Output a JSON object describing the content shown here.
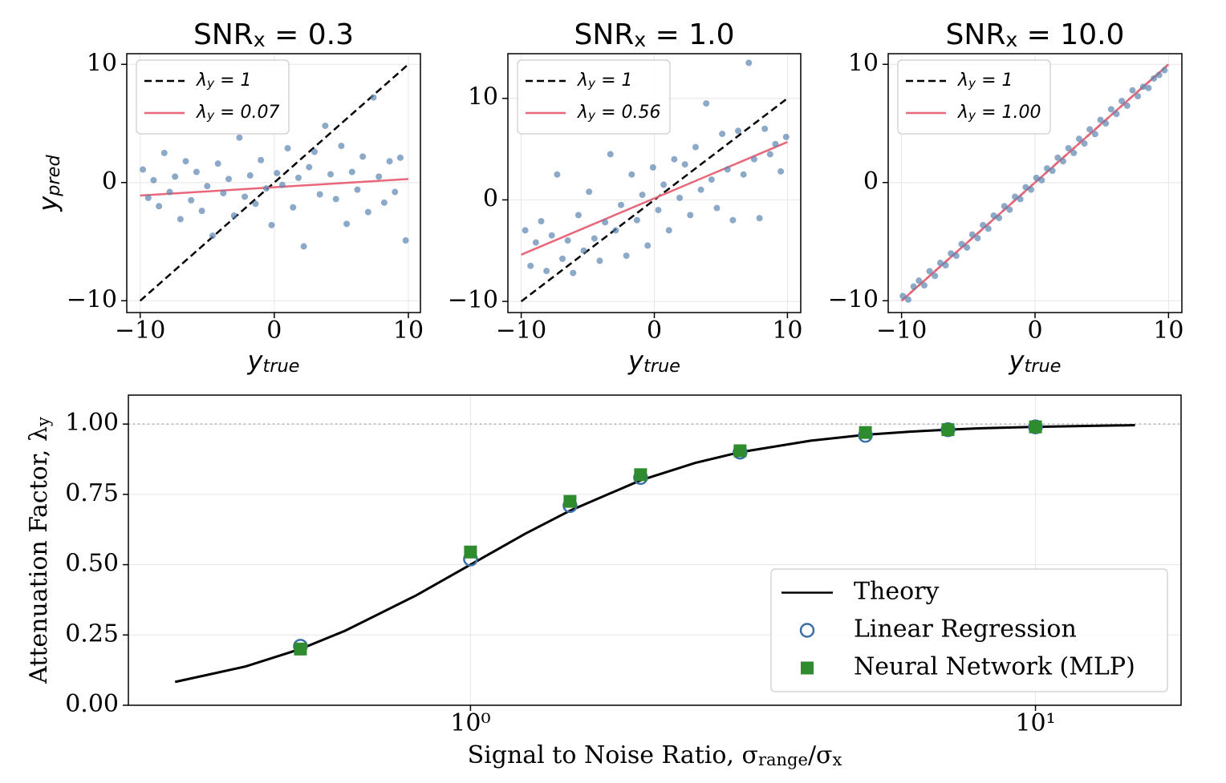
{
  "chart_data": [
    {
      "type": "scatter",
      "title": [
        {
          "t": "SNR"
        },
        {
          "sub": "x"
        },
        {
          "t": " = 0.3"
        }
      ],
      "xlabel": [
        {
          "t": "y"
        },
        {
          "sub": "true"
        }
      ],
      "ylabel": [
        {
          "t": "y"
        },
        {
          "sub": "pred"
        }
      ],
      "xlim": [
        -11,
        10.9
      ],
      "ylim": [
        -11,
        10.9
      ],
      "xticks": [
        {
          "value": -10,
          "label": "−10"
        },
        0,
        10
      ],
      "yticks": [
        {
          "value": -10,
          "label": "−10"
        },
        0,
        10
      ],
      "grid": true,
      "legend": "upper left",
      "series": [
        {
          "name": [
            {
              "t": "λ"
            },
            {
              "sub": "y"
            },
            {
              "t": " = 1"
            }
          ],
          "color": "#000000",
          "style": "dashed",
          "x": [
            -10,
            10
          ],
          "values": [
            -10,
            10
          ]
        },
        {
          "name": [
            {
              "t": "λ"
            },
            {
              "sub": "y"
            },
            {
              "t": " = 0.07"
            }
          ],
          "color": "#e8677a",
          "style": "line",
          "x": [
            -10,
            10
          ],
          "values": [
            -1.1,
            0.3
          ]
        },
        {
          "color": "#5b84b1",
          "style": "points",
          "x": [
            -9.8,
            -9.4,
            -9.0,
            -8.6,
            -8.2,
            -7.8,
            -7.4,
            -7.0,
            -6.6,
            -6.2,
            -5.8,
            -5.4,
            -5.0,
            -4.6,
            -4.2,
            -3.8,
            -3.4,
            -3.0,
            -2.6,
            -2.2,
            -1.8,
            -1.4,
            -1.0,
            -0.6,
            -0.2,
            0.2,
            0.6,
            1.0,
            1.4,
            1.8,
            2.2,
            2.6,
            3.0,
            3.4,
            3.8,
            4.2,
            4.6,
            5.0,
            5.4,
            5.8,
            6.2,
            6.6,
            7.0,
            7.4,
            7.8,
            8.2,
            8.6,
            9.0,
            9.4,
            9.8
          ],
          "values": [
            1.1,
            -1.3,
            0.2,
            -2.0,
            2.5,
            -0.8,
            0.5,
            -3.1,
            1.8,
            -1.5,
            0.9,
            -2.4,
            -0.3,
            -4.5,
            1.6,
            -0.9,
            0.3,
            -2.8,
            3.8,
            -1.2,
            0.6,
            -1.8,
            1.9,
            -0.5,
            -3.6,
            0.8,
            -0.2,
            2.9,
            -2.1,
            0.4,
            -5.4,
            1.3,
            2.6,
            -1.0,
            4.8,
            0.7,
            -1.4,
            3.1,
            -3.5,
            0.9,
            -0.6,
            2.2,
            -2.5,
            7.2,
            0.5,
            -1.7,
            1.8,
            -0.8,
            2.1,
            -4.9
          ]
        }
      ]
    },
    {
      "type": "scatter",
      "title": [
        {
          "t": "SNR"
        },
        {
          "sub": "x"
        },
        {
          "t": " = 1.0"
        }
      ],
      "xlabel": [
        {
          "t": "y"
        },
        {
          "sub": "true"
        }
      ],
      "xlim": [
        -11,
        11
      ],
      "ylim": [
        -11.1,
        14.4
      ],
      "xticks": [
        {
          "value": -10,
          "label": "−10"
        },
        0,
        10
      ],
      "yticks": [
        {
          "value": -10,
          "label": "−10"
        },
        0,
        10
      ],
      "grid": true,
      "legend": "upper left",
      "series": [
        {
          "name": [
            {
              "t": "λ"
            },
            {
              "sub": "y"
            },
            {
              "t": " = 1"
            }
          ],
          "color": "#000000",
          "style": "dashed",
          "x": [
            -10,
            10
          ],
          "values": [
            -10,
            10
          ]
        },
        {
          "name": [
            {
              "t": "λ"
            },
            {
              "sub": "y"
            },
            {
              "t": " = 0.56"
            }
          ],
          "color": "#e8677a",
          "style": "line",
          "x": [
            -10,
            10
          ],
          "values": [
            -5.4,
            5.7
          ]
        },
        {
          "color": "#5b84b1",
          "style": "points",
          "x": [
            -9.7,
            -9.3,
            -8.9,
            -8.5,
            -8.1,
            -7.7,
            -7.3,
            -6.9,
            -6.5,
            -6.1,
            -5.7,
            -5.3,
            -4.9,
            -4.5,
            -4.1,
            -3.7,
            -3.3,
            -2.9,
            -2.5,
            -2.1,
            -1.7,
            -1.3,
            -0.9,
            -0.5,
            -0.1,
            0.3,
            0.7,
            1.1,
            1.5,
            1.9,
            2.3,
            2.7,
            3.1,
            3.5,
            3.9,
            4.3,
            4.7,
            5.1,
            5.5,
            5.9,
            6.3,
            6.7,
            7.1,
            7.5,
            7.9,
            8.3,
            8.7,
            9.1,
            9.5,
            9.9
          ],
          "values": [
            -3.0,
            -6.5,
            -4.2,
            -2.1,
            -7.0,
            -3.5,
            2.5,
            -5.8,
            -4.0,
            -7.2,
            -1.5,
            -5.0,
            0.8,
            -3.8,
            -6.0,
            -2.2,
            4.5,
            -3.0,
            -0.5,
            -5.5,
            2.5,
            -2.0,
            0.5,
            -4.5,
            3.2,
            -1.0,
            1.5,
            -3.0,
            4.0,
            0.2,
            3.5,
            -1.5,
            5.2,
            1.0,
            9.5,
            2.0,
            -0.8,
            6.5,
            3.0,
            -2.0,
            6.8,
            2.5,
            13.5,
            4.0,
            -1.8,
            7.0,
            4.5,
            5.5,
            2.8,
            6.2
          ]
        }
      ]
    },
    {
      "type": "scatter",
      "title": [
        {
          "t": "SNR"
        },
        {
          "sub": "x"
        },
        {
          "t": " = 10.0"
        }
      ],
      "xlabel": [
        {
          "t": "y"
        },
        {
          "sub": "true"
        }
      ],
      "xlim": [
        -11,
        11
      ],
      "ylim": [
        -11,
        10.9
      ],
      "xticks": [
        {
          "value": -10,
          "label": "−10"
        },
        0,
        10
      ],
      "yticks": [
        {
          "value": -10,
          "label": "−10"
        },
        0,
        10
      ],
      "grid": true,
      "legend": "upper left",
      "series": [
        {
          "name": [
            {
              "t": "λ"
            },
            {
              "sub": "y"
            },
            {
              "t": " = 1"
            }
          ],
          "color": "#000000",
          "style": "dashed",
          "x": [
            -10,
            10
          ],
          "values": [
            -10,
            10
          ]
        },
        {
          "name": [
            {
              "t": "λ"
            },
            {
              "sub": "y"
            },
            {
              "t": " = 1.00"
            }
          ],
          "color": "#e8677a",
          "style": "line",
          "x": [
            -10,
            10
          ],
          "values": [
            -10,
            10
          ]
        },
        {
          "color": "#5b84b1",
          "style": "points",
          "x": [
            -9.9,
            -9.5,
            -9.1,
            -8.7,
            -8.3,
            -7.9,
            -7.5,
            -7.1,
            -6.7,
            -6.3,
            -5.9,
            -5.5,
            -5.1,
            -4.7,
            -4.3,
            -3.9,
            -3.5,
            -3.1,
            -2.7,
            -2.3,
            -1.9,
            -1.5,
            -1.1,
            -0.7,
            -0.3,
            0.1,
            0.5,
            0.9,
            1.3,
            1.7,
            2.1,
            2.5,
            2.9,
            3.3,
            3.7,
            4.1,
            4.5,
            4.9,
            5.3,
            5.7,
            6.1,
            6.5,
            6.9,
            7.3,
            7.7,
            8.1,
            8.5,
            8.9,
            9.3,
            9.7
          ],
          "values": [
            -9.6,
            -9.9,
            -8.8,
            -8.3,
            -8.7,
            -7.5,
            -7.9,
            -6.8,
            -7.0,
            -6.0,
            -6.2,
            -5.2,
            -5.5,
            -4.4,
            -4.7,
            -3.6,
            -3.9,
            -2.8,
            -3.0,
            -2.0,
            -2.3,
            -1.2,
            -1.4,
            -0.4,
            -0.6,
            0.4,
            0.2,
            1.2,
            1.0,
            2.1,
            1.8,
            2.9,
            2.5,
            3.7,
            3.3,
            4.5,
            4.1,
            5.3,
            5.0,
            6.2,
            5.8,
            6.9,
            6.5,
            7.8,
            7.3,
            8.1,
            8.0,
            8.8,
            9.1,
            9.5
          ]
        }
      ]
    },
    {
      "type": "line",
      "xlabel": [
        {
          "t": "Signal to Noise Ratio, σ"
        },
        {
          "sub": "range"
        },
        {
          "t": "/σ"
        },
        {
          "sub": "x"
        }
      ],
      "ylabel": [
        {
          "t": "Attenuation Factor, λ"
        },
        {
          "sub": "y"
        }
      ],
      "xscale": "log",
      "xlim": [
        0.248,
        18.1
      ],
      "ylim": [
        0,
        1.103
      ],
      "xticks": [
        {
          "value": 1,
          "label": "10⁰"
        },
        {
          "value": 10,
          "label": "10¹"
        }
      ],
      "yticks": [
        {
          "value": 0,
          "label": "0.00"
        },
        {
          "value": 0.25,
          "label": "0.25"
        },
        {
          "value": 0.5,
          "label": "0.50"
        },
        {
          "value": 0.75,
          "label": "0.75"
        },
        {
          "value": 1,
          "label": "1.00"
        }
      ],
      "grid": true,
      "legend": "lower right",
      "reference_line": 1,
      "series": [
        {
          "name": [
            {
              "t": "Theory"
            }
          ],
          "color": "#000000",
          "style": "line",
          "x": [
            0.3,
            0.4,
            0.5,
            0.6,
            0.8,
            1,
            1.25,
            1.5,
            2,
            2.5,
            3,
            4,
            5,
            6,
            7,
            8,
            10,
            12,
            15
          ],
          "values": [
            0.083,
            0.138,
            0.2,
            0.265,
            0.39,
            0.5,
            0.61,
            0.692,
            0.8,
            0.862,
            0.9,
            0.941,
            0.962,
            0.973,
            0.98,
            0.985,
            0.99,
            0.993,
            0.996
          ]
        },
        {
          "name": [
            {
              "t": "Linear Regression"
            }
          ],
          "color": "#3a6fa8",
          "style": "open-circle",
          "x": [
            0.5,
            1,
            1.5,
            2,
            3,
            5,
            7,
            10
          ],
          "values": [
            0.21,
            0.52,
            0.71,
            0.81,
            0.9,
            0.96,
            0.98,
            0.99
          ]
        },
        {
          "name": [
            {
              "t": "Neural Network (MLP)"
            }
          ],
          "color": "#2e8b2e",
          "style": "square",
          "x": [
            0.5,
            1,
            1.5,
            2,
            3,
            5,
            7,
            10
          ],
          "values": [
            0.2,
            0.545,
            0.725,
            0.82,
            0.905,
            0.97,
            0.98,
            0.99
          ]
        }
      ]
    }
  ]
}
